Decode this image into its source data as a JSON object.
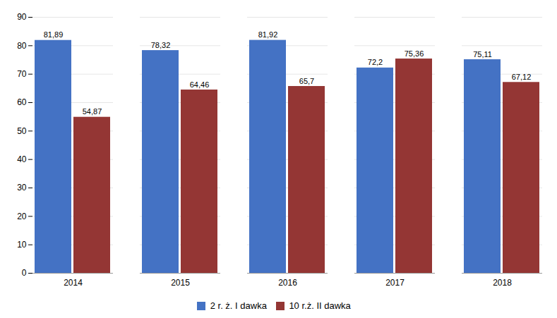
{
  "chart_data": {
    "type": "bar",
    "categories": [
      "2014",
      "2015",
      "2016",
      "2017",
      "2018"
    ],
    "series": [
      {
        "name": "2 r. ż. I dawka",
        "color": "#4472C4",
        "values": [
          81.89,
          78.32,
          81.92,
          72.2,
          75.11
        ],
        "value_labels": [
          "81,89",
          "78,32",
          "81,92",
          "72,2",
          "75,11"
        ]
      },
      {
        "name": "10 r.ż. II dawka",
        "color": "#943634",
        "values": [
          54.87,
          64.46,
          65.7,
          75.36,
          67.12
        ],
        "value_labels": [
          "54,87",
          "64,46",
          "65,7",
          "75,36",
          "67,12"
        ]
      }
    ],
    "ylim": [
      0,
      90
    ],
    "yticks": [
      0,
      10,
      20,
      30,
      40,
      50,
      60,
      70,
      80,
      90
    ],
    "grid": true,
    "data_labels": true,
    "legend": "bottom"
  }
}
